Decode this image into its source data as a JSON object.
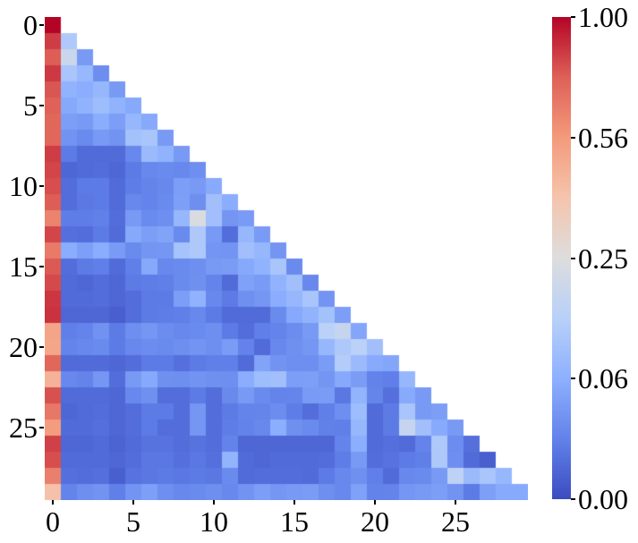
{
  "chart_data": {
    "type": "heatmap",
    "title": "",
    "xlabel": "",
    "ylabel": "",
    "shape": "lower-triangular",
    "n": 30,
    "x_tick_values": [
      0,
      5,
      10,
      15,
      20,
      25
    ],
    "x_tick_labels": [
      "0",
      "5",
      "10",
      "15",
      "20",
      "25"
    ],
    "y_tick_values": [
      0,
      5,
      10,
      15,
      20,
      25
    ],
    "y_tick_labels": [
      "0",
      "5",
      "10",
      "15",
      "20",
      "25"
    ],
    "colormap": "coolwarm",
    "norm": "power: colormap position = sqrt(value), vmin 0, vmax 1",
    "grid": false,
    "legend_position": "colorbar-right",
    "colorbar": {
      "tick_labels": [
        "1.00",
        "0.56",
        "0.25",
        "0.06",
        "0.00"
      ],
      "tick_values": [
        1.0,
        0.5625,
        0.25,
        0.0625,
        0.0
      ]
    },
    "rows": [
      [
        1.0
      ],
      [
        0.85,
        0.12
      ],
      [
        0.77,
        0.19,
        0.036
      ],
      [
        0.86,
        0.11,
        0.08,
        0.025
      ],
      [
        0.79,
        0.068,
        0.058,
        0.078,
        0.036
      ],
      [
        0.76,
        0.053,
        0.068,
        0.09,
        0.068,
        0.053
      ],
      [
        0.74,
        0.04,
        0.036,
        0.058,
        0.04,
        0.078,
        0.053
      ],
      [
        0.74,
        0.029,
        0.022,
        0.036,
        0.029,
        0.099,
        0.109,
        0.036
      ],
      [
        0.85,
        0.012,
        0.005,
        0.005,
        0.005,
        0.02,
        0.084,
        0.068,
        0.036
      ],
      [
        0.83,
        0.004,
        0.005,
        0.006,
        0.004,
        0.012,
        0.02,
        0.022,
        0.02,
        0.026
      ],
      [
        0.81,
        0.006,
        0.012,
        0.012,
        0.005,
        0.013,
        0.017,
        0.02,
        0.04,
        0.036,
        0.055
      ],
      [
        0.77,
        0.006,
        0.011,
        0.012,
        0.005,
        0.02,
        0.017,
        0.022,
        0.042,
        0.026,
        0.096,
        0.058
      ],
      [
        0.64,
        0.013,
        0.013,
        0.015,
        0.006,
        0.036,
        0.022,
        0.026,
        0.078,
        0.235,
        0.096,
        0.031,
        0.037
      ],
      [
        0.83,
        0.007,
        0.006,
        0.012,
        0.005,
        0.053,
        0.04,
        0.046,
        0.022,
        0.119,
        0.036,
        0.006,
        0.078,
        0.037
      ],
      [
        0.67,
        0.058,
        0.042,
        0.058,
        0.037,
        0.022,
        0.031,
        0.032,
        0.105,
        0.119,
        0.031,
        0.03,
        0.096,
        0.078,
        0.031
      ],
      [
        0.78,
        0.006,
        0.012,
        0.014,
        0.005,
        0.014,
        0.053,
        0.02,
        0.022,
        0.026,
        0.036,
        0.038,
        0.053,
        0.068,
        0.109,
        0.022
      ],
      [
        0.82,
        0.005,
        0.004,
        0.006,
        0.004,
        0.012,
        0.013,
        0.014,
        0.022,
        0.027,
        0.017,
        0.005,
        0.044,
        0.037,
        0.068,
        0.096,
        0.02
      ],
      [
        0.87,
        0.005,
        0.005,
        0.006,
        0.004,
        0.006,
        0.012,
        0.012,
        0.04,
        0.068,
        0.02,
        0.012,
        0.027,
        0.032,
        0.058,
        0.078,
        0.109,
        0.03
      ],
      [
        0.88,
        0.004,
        0.004,
        0.004,
        0.002,
        0.006,
        0.012,
        0.013,
        0.014,
        0.02,
        0.012,
        0.005,
        0.005,
        0.005,
        0.022,
        0.053,
        0.068,
        0.099,
        0.04
      ],
      [
        0.52,
        0.014,
        0.017,
        0.028,
        0.012,
        0.026,
        0.032,
        0.024,
        0.02,
        0.022,
        0.026,
        0.012,
        0.006,
        0.014,
        0.017,
        0.024,
        0.036,
        0.148,
        0.176,
        0.05
      ],
      [
        0.51,
        0.017,
        0.02,
        0.022,
        0.012,
        0.02,
        0.024,
        0.022,
        0.026,
        0.03,
        0.026,
        0.038,
        0.016,
        0.005,
        0.02,
        0.027,
        0.032,
        0.078,
        0.119,
        0.148,
        0.096
      ],
      [
        0.74,
        0.005,
        0.005,
        0.005,
        0.004,
        0.006,
        0.012,
        0.012,
        0.007,
        0.012,
        0.014,
        0.014,
        0.005,
        0.046,
        0.029,
        0.026,
        0.026,
        0.038,
        0.13,
        0.084,
        0.055,
        0.05
      ],
      [
        0.46,
        0.02,
        0.017,
        0.032,
        0.006,
        0.036,
        0.053,
        0.027,
        0.026,
        0.029,
        0.027,
        0.026,
        0.058,
        0.09,
        0.096,
        0.04,
        0.041,
        0.031,
        0.053,
        0.038,
        0.016,
        0.014,
        0.078
      ],
      [
        0.8,
        0.005,
        0.005,
        0.005,
        0.004,
        0.02,
        0.027,
        0.006,
        0.006,
        0.012,
        0.006,
        0.021,
        0.036,
        0.022,
        0.017,
        0.018,
        0.037,
        0.038,
        0.01,
        0.07,
        0.018,
        0.007,
        0.055,
        0.036
      ],
      [
        0.68,
        0.004,
        0.005,
        0.006,
        0.004,
        0.006,
        0.012,
        0.012,
        0.006,
        0.032,
        0.006,
        0.012,
        0.017,
        0.018,
        0.024,
        0.013,
        0.006,
        0.014,
        0.026,
        0.09,
        0.005,
        0.012,
        0.109,
        0.036,
        0.04
      ],
      [
        0.55,
        0.005,
        0.005,
        0.007,
        0.004,
        0.006,
        0.012,
        0.006,
        0.006,
        0.032,
        0.006,
        0.013,
        0.016,
        0.02,
        0.06,
        0.027,
        0.022,
        0.015,
        0.014,
        0.078,
        0.005,
        0.012,
        0.176,
        0.096,
        0.055,
        0.036
      ],
      [
        0.84,
        0.004,
        0.004,
        0.005,
        0.003,
        0.005,
        0.008,
        0.008,
        0.006,
        0.008,
        0.006,
        0.016,
        0.004,
        0.004,
        0.004,
        0.004,
        0.004,
        0.004,
        0.017,
        0.06,
        0.005,
        0.007,
        0.005,
        0.017,
        0.119,
        0.024,
        0.007
      ],
      [
        0.81,
        0.005,
        0.005,
        0.005,
        0.004,
        0.006,
        0.01,
        0.01,
        0.007,
        0.01,
        0.007,
        0.07,
        0.005,
        0.004,
        0.005,
        0.005,
        0.005,
        0.006,
        0.013,
        0.036,
        0.006,
        0.008,
        0.012,
        0.014,
        0.119,
        0.026,
        0.005,
        0.002
      ],
      [
        0.65,
        0.007,
        0.006,
        0.007,
        0.002,
        0.008,
        0.01,
        0.012,
        0.01,
        0.012,
        0.01,
        0.022,
        0.005,
        0.006,
        0.006,
        0.006,
        0.005,
        0.012,
        0.02,
        0.027,
        0.014,
        0.005,
        0.02,
        0.022,
        0.036,
        0.155,
        0.084,
        0.109,
        0.078
      ],
      [
        0.4,
        0.017,
        0.026,
        0.029,
        0.014,
        0.03,
        0.042,
        0.026,
        0.02,
        0.022,
        0.026,
        0.02,
        0.029,
        0.04,
        0.032,
        0.036,
        0.038,
        0.026,
        0.02,
        0.044,
        0.016,
        0.017,
        0.032,
        0.036,
        0.04,
        0.029,
        0.012,
        0.041,
        0.055,
        0.055
      ]
    ]
  },
  "colors": {
    "background": "#ffffff",
    "tick_text": "#000000",
    "coolwarm_anchor_positions": [
      0,
      0.125,
      0.25,
      0.375,
      0.5,
      0.625,
      0.75,
      0.875,
      1.0
    ],
    "coolwarm_anchor_hex": [
      "#3B4CC0",
      "#6282EA",
      "#8DB0FE",
      "#B8D0F9",
      "#DDDDDD",
      "#F5C4AD",
      "#F49A7B",
      "#DE6057",
      "#B40426"
    ]
  }
}
